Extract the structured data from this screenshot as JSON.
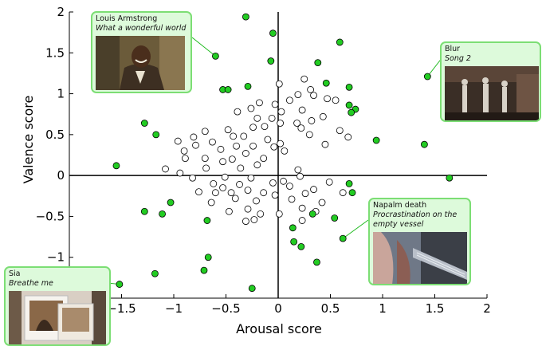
{
  "chart_data": {
    "type": "scatter",
    "xlabel": "Arousal score",
    "ylabel": "Valence score",
    "xlim": [
      -2,
      2
    ],
    "ylim": [
      -1.5,
      2
    ],
    "xticks": [
      -1.5,
      -1,
      -0.5,
      0,
      0.5,
      1,
      1.5,
      2
    ],
    "xtick_labels": [
      "−1.5",
      "−1",
      "−0.5",
      "0",
      "0.5",
      "1",
      "1.5",
      "2"
    ],
    "yticks": [
      -1.5,
      -1,
      -0.5,
      0,
      0.5,
      1,
      1.5,
      2
    ],
    "ytick_labels": [
      "−1.5",
      "−1",
      "−0.5",
      "0",
      "0.5",
      "1",
      "1.5",
      "2"
    ],
    "grid": false,
    "marker_colors": {
      "highlighted": "#22cc22",
      "other": "#ffffff",
      "edge": "#000000"
    },
    "highlighted_points": [
      [
        -0.31,
        1.94
      ],
      [
        -0.05,
        1.74
      ],
      [
        -0.6,
        1.46
      ],
      [
        0.59,
        1.63
      ],
      [
        0.38,
        1.38
      ],
      [
        -0.07,
        1.4
      ],
      [
        1.43,
        1.21
      ],
      [
        -0.53,
        1.05
      ],
      [
        -0.48,
        1.05
      ],
      [
        -0.29,
        1.09
      ],
      [
        0.46,
        1.13
      ],
      [
        0.68,
        1.08
      ],
      [
        0.68,
        0.86
      ],
      [
        0.74,
        0.81
      ],
      [
        0.7,
        0.77
      ],
      [
        -1.28,
        0.64
      ],
      [
        -1.17,
        0.5
      ],
      [
        0.94,
        0.43
      ],
      [
        1.4,
        0.38
      ],
      [
        -1.55,
        0.12
      ],
      [
        1.64,
        -0.03
      ],
      [
        0.68,
        -0.1
      ],
      [
        0.71,
        -0.21
      ],
      [
        -1.03,
        -0.33
      ],
      [
        -1.28,
        -0.44
      ],
      [
        -1.11,
        -0.47
      ],
      [
        -0.68,
        -0.55
      ],
      [
        0.33,
        -0.47
      ],
      [
        0.54,
        -0.52
      ],
      [
        0.14,
        -0.64
      ],
      [
        0.15,
        -0.81
      ],
      [
        0.22,
        -0.87
      ],
      [
        0.62,
        -0.77
      ],
      [
        -0.67,
        -1.0
      ],
      [
        0.37,
        -1.06
      ],
      [
        -0.71,
        -1.16
      ],
      [
        -1.18,
        -1.2
      ],
      [
        -0.25,
        -1.38
      ],
      [
        -1.52,
        -1.33
      ]
    ],
    "other_points": [
      [
        0.01,
        1.12
      ],
      [
        0.25,
        1.18
      ],
      [
        0.31,
        1.05
      ],
      [
        0.19,
        0.99
      ],
      [
        0.11,
        0.92
      ],
      [
        -0.03,
        0.87
      ],
      [
        0.34,
        0.98
      ],
      [
        -0.18,
        0.89
      ],
      [
        -0.26,
        0.82
      ],
      [
        0.47,
        0.94
      ],
      [
        0.55,
        0.92
      ],
      [
        0.03,
        0.78
      ],
      [
        0.23,
        0.8
      ],
      [
        -0.39,
        0.78
      ],
      [
        -0.2,
        0.7
      ],
      [
        0.43,
        0.72
      ],
      [
        -0.06,
        0.7
      ],
      [
        0.32,
        0.67
      ],
      [
        0.02,
        0.64
      ],
      [
        0.18,
        0.64
      ],
      [
        -0.13,
        0.6
      ],
      [
        -0.24,
        0.59
      ],
      [
        0.22,
        0.58
      ],
      [
        0.59,
        0.55
      ],
      [
        -0.48,
        0.56
      ],
      [
        -0.7,
        0.54
      ],
      [
        -0.43,
        0.48
      ],
      [
        -0.81,
        0.47
      ],
      [
        -0.96,
        0.42
      ],
      [
        -0.33,
        0.48
      ],
      [
        0.3,
        0.5
      ],
      [
        0.67,
        0.47
      ],
      [
        -0.1,
        0.44
      ],
      [
        0.45,
        0.38
      ],
      [
        -0.63,
        0.41
      ],
      [
        -0.79,
        0.37
      ],
      [
        -0.4,
        0.36
      ],
      [
        -0.24,
        0.36
      ],
      [
        -0.04,
        0.35
      ],
      [
        0.02,
        0.39
      ],
      [
        -0.55,
        0.32
      ],
      [
        -0.9,
        0.3
      ],
      [
        -0.31,
        0.27
      ],
      [
        0.06,
        0.3
      ],
      [
        -0.7,
        0.21
      ],
      [
        -0.44,
        0.2
      ],
      [
        -0.14,
        0.21
      ],
      [
        -0.89,
        0.21
      ],
      [
        -0.53,
        0.17
      ],
      [
        -0.2,
        0.13
      ],
      [
        -1.08,
        0.08
      ],
      [
        -0.69,
        0.09
      ],
      [
        -0.36,
        0.09
      ],
      [
        -0.94,
        0.03
      ],
      [
        0.19,
        0.07
      ],
      [
        -0.82,
        -0.03
      ],
      [
        -0.51,
        -0.02
      ],
      [
        -0.26,
        -0.03
      ],
      [
        0.21,
        -0.01
      ],
      [
        0.05,
        -0.07
      ],
      [
        -0.62,
        -0.1
      ],
      [
        -0.37,
        -0.11
      ],
      [
        -0.05,
        -0.09
      ],
      [
        0.49,
        -0.08
      ],
      [
        0.11,
        -0.13
      ],
      [
        -0.53,
        -0.15
      ],
      [
        -0.29,
        -0.18
      ],
      [
        -0.14,
        -0.21
      ],
      [
        0.34,
        -0.17
      ],
      [
        -0.76,
        -0.2
      ],
      [
        -0.45,
        -0.21
      ],
      [
        -0.6,
        -0.21
      ],
      [
        0.62,
        -0.21
      ],
      [
        -0.03,
        -0.24
      ],
      [
        0.26,
        -0.22
      ],
      [
        -0.41,
        -0.28
      ],
      [
        -0.21,
        -0.31
      ],
      [
        0.13,
        -0.29
      ],
      [
        0.42,
        -0.33
      ],
      [
        -0.64,
        -0.33
      ],
      [
        -0.29,
        -0.41
      ],
      [
        -0.47,
        -0.44
      ],
      [
        0.01,
        -0.47
      ],
      [
        -0.17,
        -0.47
      ],
      [
        0.23,
        -0.4
      ],
      [
        0.36,
        -0.44
      ],
      [
        -0.31,
        -0.56
      ],
      [
        0.23,
        -0.55
      ],
      [
        -0.23,
        -0.54
      ]
    ],
    "annotations": [
      {
        "artist": "Louis Armstrong",
        "song": "What a wonderful world",
        "point": [
          -0.6,
          1.46
        ]
      },
      {
        "artist": "Blur",
        "song": "Song 2",
        "point": [
          1.43,
          1.21
        ]
      },
      {
        "artist": "Napalm death",
        "song": "Procrastination on the empty vessel",
        "point": [
          0.62,
          -0.77
        ]
      },
      {
        "artist": "Sia",
        "song": "Breathe me",
        "point": [
          -1.52,
          -1.33
        ]
      }
    ]
  },
  "cards": {
    "armstrong": {
      "artist": "Louis Armstrong",
      "song": "What a wonderful world",
      "thumb_icon": "video-still-man-in-suit"
    },
    "blur": {
      "artist": "Blur",
      "song": "Song 2",
      "thumb_icon": "video-still-band-on-stage"
    },
    "napalm": {
      "artist": "Napalm death",
      "song": "Procrastination on the empty vessel",
      "thumb_icon": "video-still-guitarist"
    },
    "sia": {
      "artist": "Sia",
      "song": "Breathe me",
      "thumb_icon": "video-still-polaroid-photos"
    }
  }
}
